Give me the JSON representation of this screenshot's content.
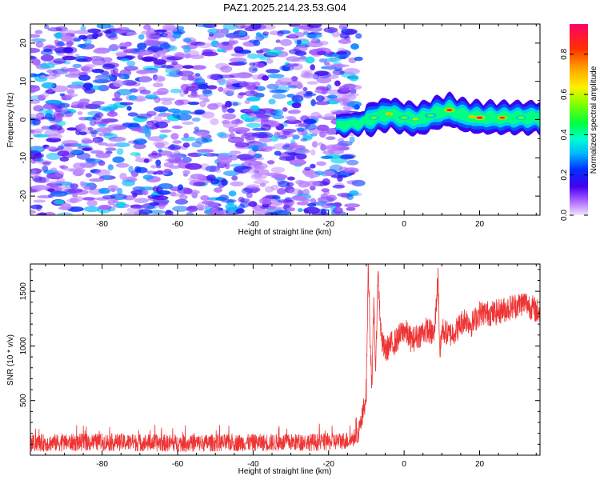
{
  "title": "PAZ1.2025.214.23.53.G04",
  "chart_data": [
    {
      "type": "heatmap",
      "xlabel": "Height of straight line (km)",
      "ylabel": "Frequency (Hz)",
      "xlim": [
        -99,
        36
      ],
      "ylim": [
        -25,
        25
      ],
      "xticks": [
        -80,
        -60,
        -40,
        -20,
        0,
        20
      ],
      "yticks": [
        -20,
        -10,
        0,
        10,
        20
      ],
      "colorbar": {
        "label": "Normalized spectral amplitude",
        "range": [
          0,
          0.95
        ],
        "ticks": [
          0.0,
          0.2,
          0.4,
          0.6,
          0.8
        ]
      },
      "features": {
        "noise_region_x": [
          -99,
          -12
        ],
        "noise_amplitude_range": [
          0.05,
          0.35
        ],
        "signal_start_x": -18,
        "signal_frequency_track": [
          {
            "x": -18,
            "f": -1.5
          },
          {
            "x": -12,
            "f": -1.0
          },
          {
            "x": -8,
            "f": 0.5
          },
          {
            "x": -4,
            "f": 1.5
          },
          {
            "x": 0,
            "f": 0.5
          },
          {
            "x": 4,
            "f": 0.0
          },
          {
            "x": 8,
            "f": 1.5
          },
          {
            "x": 12,
            "f": 2.5
          },
          {
            "x": 16,
            "f": 1.0
          },
          {
            "x": 20,
            "f": 0.5
          },
          {
            "x": 26,
            "f": 0.5
          },
          {
            "x": 36,
            "f": 0.5
          }
        ]
      }
    },
    {
      "type": "line",
      "xlabel": "Height of straight line (km)",
      "ylabel": "SNR (10 * v/v)",
      "xlim": [
        -99,
        36
      ],
      "ylim": [
        0,
        1750
      ],
      "xticks": [
        -80,
        -60,
        -40,
        -20,
        0,
        20
      ],
      "yticks": [
        500,
        1000,
        1500
      ],
      "series": [
        {
          "color": "#ee3333",
          "x": [
            -99,
            -80,
            -60,
            -40,
            -20,
            -14,
            -12,
            -11,
            -10,
            -9.5,
            -9,
            -8.5,
            -8,
            -7.5,
            -7,
            -6,
            -5,
            -4,
            -2,
            0,
            2,
            4,
            6,
            8,
            9,
            9.5,
            10,
            12,
            14,
            16,
            18,
            20,
            24,
            28,
            32,
            36
          ],
          "y": [
            110,
            120,
            110,
            115,
            120,
            140,
            200,
            350,
            600,
            1750,
            1100,
            600,
            1450,
            700,
            1700,
            1050,
            950,
            1000,
            1050,
            1150,
            1050,
            1100,
            1150,
            1100,
            1650,
            900,
            1150,
            1100,
            1150,
            1250,
            1200,
            1300,
            1300,
            1350,
            1400,
            1300
          ]
        }
      ]
    }
  ]
}
